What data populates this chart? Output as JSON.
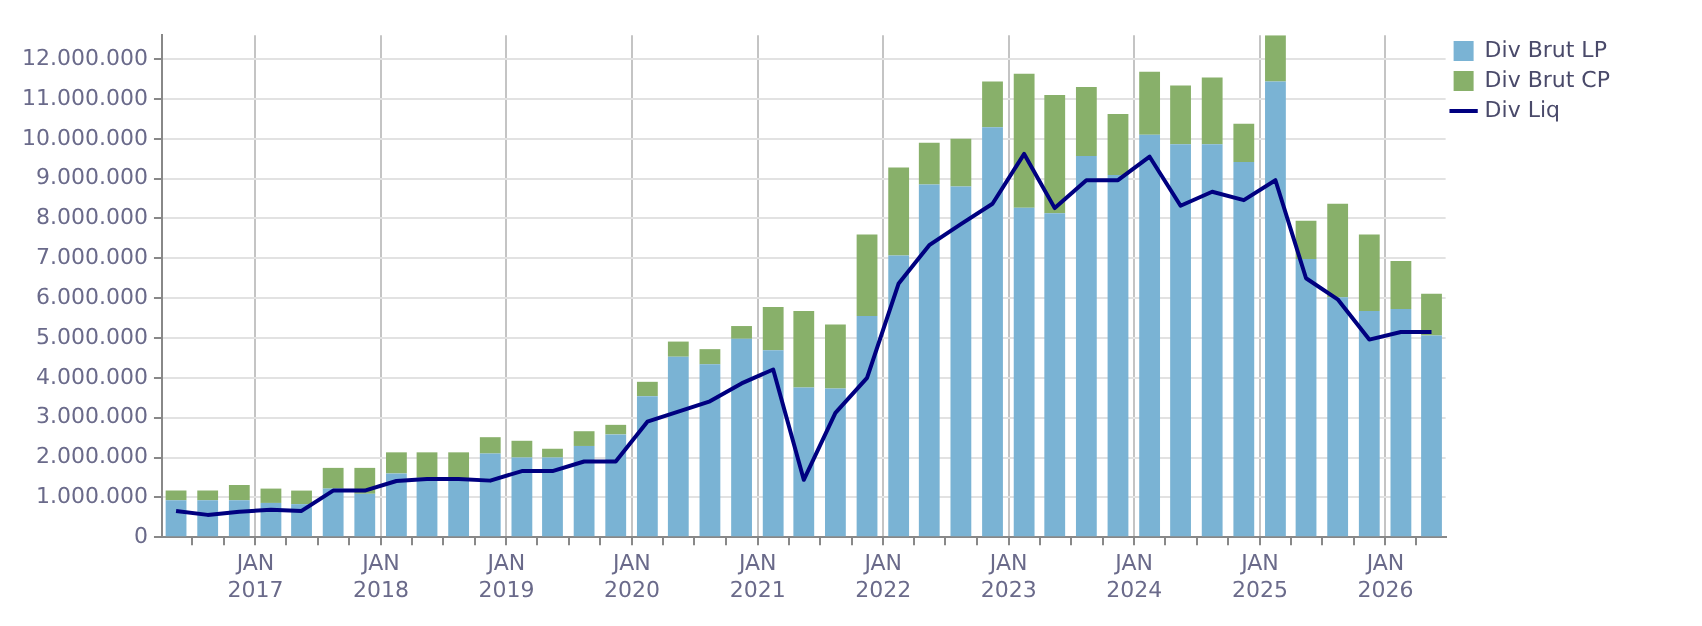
{
  "chart_data": {
    "type": "bar",
    "stacked": true,
    "grid": true,
    "legend": "top right",
    "x": [
      "2016-05-15",
      "2016-08-15",
      "2016-11-15",
      "2017-02-15",
      "2017-05-15",
      "2017-08-15",
      "2017-11-15",
      "2018-02-15",
      "2018-05-15",
      "2018-08-15",
      "2018-11-15",
      "2019-02-15",
      "2019-05-15",
      "2019-08-15",
      "2019-11-15",
      "2020-02-15",
      "2020-05-15",
      "2020-08-15",
      "2020-11-15",
      "2021-02-15",
      "2021-05-15",
      "2021-08-15",
      "2021-11-15",
      "2022-02-15",
      "2022-05-15",
      "2022-08-15",
      "2022-11-15",
      "2023-02-15",
      "2023-05-15",
      "2023-08-15",
      "2023-11-15",
      "2024-02-15",
      "2024-05-15",
      "2024-08-15",
      "2024-11-15",
      "2025-02-15",
      "2025-05-15",
      "2025-08-15",
      "2025-11-15",
      "2026-02-15",
      "2026-05-15"
    ],
    "xlim": [
      "2016-04-04",
      "2026-06-25"
    ],
    "xticks": [
      {
        "value": "2016-07-01",
        "label": null
      },
      {
        "value": "2016-10-01",
        "label": null
      },
      {
        "value": "2017-01-01",
        "label": "JAN\n2017"
      },
      {
        "value": "2017-04-01",
        "label": null
      },
      {
        "value": "2017-07-01",
        "label": null
      },
      {
        "value": "2017-10-01",
        "label": null
      },
      {
        "value": "2018-01-01",
        "label": "JAN\n2018"
      },
      {
        "value": "2018-04-01",
        "label": null
      },
      {
        "value": "2018-07-01",
        "label": null
      },
      {
        "value": "2018-10-01",
        "label": null
      },
      {
        "value": "2019-01-01",
        "label": "JAN\n2019"
      },
      {
        "value": "2019-04-01",
        "label": null
      },
      {
        "value": "2019-07-01",
        "label": null
      },
      {
        "value": "2019-10-01",
        "label": null
      },
      {
        "value": "2020-01-01",
        "label": "JAN\n2020"
      },
      {
        "value": "2020-04-01",
        "label": null
      },
      {
        "value": "2020-07-01",
        "label": null
      },
      {
        "value": "2020-10-01",
        "label": null
      },
      {
        "value": "2021-01-01",
        "label": "JAN\n2021"
      },
      {
        "value": "2021-04-01",
        "label": null
      },
      {
        "value": "2021-07-01",
        "label": null
      },
      {
        "value": "2021-10-01",
        "label": null
      },
      {
        "value": "2022-01-01",
        "label": "JAN\n2022"
      },
      {
        "value": "2022-04-01",
        "label": null
      },
      {
        "value": "2022-07-01",
        "label": null
      },
      {
        "value": "2022-10-01",
        "label": null
      },
      {
        "value": "2023-01-01",
        "label": "JAN\n2023"
      },
      {
        "value": "2023-04-01",
        "label": null
      },
      {
        "value": "2023-07-01",
        "label": null
      },
      {
        "value": "2023-10-01",
        "label": null
      },
      {
        "value": "2024-01-01",
        "label": "JAN\n2024"
      },
      {
        "value": "2024-04-01",
        "label": null
      },
      {
        "value": "2024-07-01",
        "label": null
      },
      {
        "value": "2024-10-01",
        "label": null
      },
      {
        "value": "2025-01-01",
        "label": "JAN\n2025"
      },
      {
        "value": "2025-04-01",
        "label": null
      },
      {
        "value": "2025-07-01",
        "label": null
      },
      {
        "value": "2025-10-01",
        "label": null
      },
      {
        "value": "2026-01-01",
        "label": "JAN\n2026"
      },
      {
        "value": "2026-04-01",
        "label": null
      }
    ],
    "ylim": [
      0,
      12600000
    ],
    "yticks": [
      0,
      {
        "value": 1000000,
        "label": "1.000.000"
      },
      {
        "value": 2000000,
        "label": "2.000.000"
      },
      {
        "value": 3000000,
        "label": "3.000.000"
      },
      {
        "value": 4000000,
        "label": "4.000.000"
      },
      {
        "value": 5000000,
        "label": "5.000.000"
      },
      {
        "value": 6000000,
        "label": "6.000.000"
      },
      {
        "value": 7000000,
        "label": "7.000.000"
      },
      {
        "value": 8000000,
        "label": "8.000.000"
      },
      {
        "value": 9000000,
        "label": "9.000.000"
      },
      {
        "value": 10000000,
        "label": "10.000.000"
      },
      {
        "value": 11000000,
        "label": "11.000.000"
      },
      {
        "value": 12000000,
        "label": "12.000.000"
      }
    ],
    "series": [
      {
        "name": "Div Brut LP",
        "color": "#7ab3d4",
        "values": [
          930000,
          930000,
          930000,
          860000,
          830000,
          1220000,
          1090000,
          1600000,
          1490000,
          1410000,
          2100000,
          2000000,
          2000000,
          2290000,
          2580000,
          3540000,
          4530000,
          4340000,
          4980000,
          4690000,
          3760000,
          3730000,
          5550000,
          7070000,
          8850000,
          8800000,
          10290000,
          8270000,
          8130000,
          9570000,
          9090000,
          10100000,
          9860000,
          9860000,
          9420000,
          11440000,
          6980000,
          6020000,
          5680000,
          5730000,
          5060000
        ]
      },
      {
        "name": "Div Brut CP",
        "color": "#88b06a",
        "values": [
          240000,
          240000,
          380000,
          360000,
          340000,
          520000,
          650000,
          530000,
          640000,
          720000,
          410000,
          420000,
          220000,
          370000,
          240000,
          360000,
          380000,
          380000,
          320000,
          1090000,
          1920000,
          1610000,
          2050000,
          2210000,
          1050000,
          1200000,
          1150000,
          3360000,
          2970000,
          1730000,
          1530000,
          1580000,
          1480000,
          1680000,
          960000,
          1160000,
          960000,
          2350000,
          1920000,
          1200000,
          1050000
        ]
      },
      {
        "name": "Div Liq",
        "type": "line",
        "color": "#000080",
        "values": [
          660000,
          560000,
          640000,
          690000,
          660000,
          1170000,
          1170000,
          1410000,
          1460000,
          1460000,
          1420000,
          1660000,
          1660000,
          1900000,
          1900000,
          2900000,
          3150000,
          3410000,
          3860000,
          4210000,
          1440000,
          3120000,
          4000000,
          6370000,
          7330000,
          7860000,
          8370000,
          9620000,
          8260000,
          8960000,
          8960000,
          9550000,
          8320000,
          8670000,
          8460000,
          8960000,
          6500000,
          5970000,
          4960000,
          5150000,
          5150000
        ]
      }
    ]
  }
}
